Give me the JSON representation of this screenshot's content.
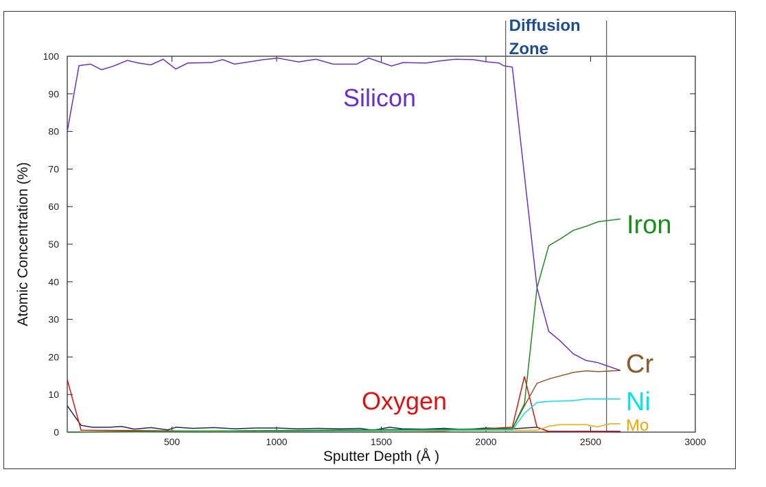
{
  "chart_data": {
    "type": "line",
    "xlabel": "Sputter Depth (Å )",
    "ylabel": "Atomic Concentration (%)",
    "xlim": [
      0,
      3000
    ],
    "ylim": [
      0,
      100
    ],
    "xticks": [
      500,
      1000,
      1500,
      2000,
      2500,
      3000
    ],
    "yticks": [
      0,
      10,
      20,
      30,
      40,
      50,
      60,
      70,
      80,
      90,
      100
    ],
    "grid": false,
    "annotation": {
      "text_line1": "Diffusion",
      "text_line2": "Zone",
      "x_start": 2094,
      "x_end": 2576,
      "color": "#1f4e8c"
    },
    "series": [
      {
        "name": "Silicon",
        "color": "#6a2fc8",
        "x": [
          0,
          56,
          111,
          164,
          222,
          287,
          340,
          399,
          458,
          518,
          576,
          688,
          743,
          799,
          938,
          1007,
          1104,
          1188,
          1271,
          1382,
          1440,
          1549,
          1604,
          1715,
          1771,
          1854,
          1938,
          2007,
          2063,
          2083,
          2126,
          2244,
          2300,
          2352,
          2418,
          2476,
          2533,
          2642
        ],
        "y": [
          80,
          97.5,
          97.9,
          96.4,
          97.4,
          98.9,
          98.2,
          97.7,
          99.2,
          96.6,
          98.2,
          98.3,
          99.1,
          97.9,
          99.1,
          99.5,
          98.5,
          99.2,
          97.9,
          97.9,
          99.5,
          97.4,
          98.3,
          98.2,
          98.7,
          99.2,
          99.1,
          98.5,
          98.2,
          97.5,
          97.1,
          38.4,
          26.8,
          24.4,
          20.8,
          19.1,
          18.5,
          16.4
        ]
      },
      {
        "name": "Iron",
        "color": "#1a8c1a",
        "x": [
          0,
          2126,
          2184,
          2244,
          2300,
          2358,
          2418,
          2476,
          2538,
          2642
        ],
        "y": [
          0,
          0.9,
          7.6,
          38.4,
          49.6,
          51.5,
          53.7,
          54.7,
          56,
          56.7
        ]
      },
      {
        "name": "Cr",
        "color": "#8b5a2b",
        "x": [
          0,
          2126,
          2184,
          2244,
          2304,
          2358,
          2418,
          2476,
          2538,
          2642
        ],
        "y": [
          0,
          0.9,
          7,
          13,
          14.2,
          15,
          15.9,
          16.3,
          16.1,
          16.4
        ]
      },
      {
        "name": "Ni",
        "color": "#00e5e5",
        "x": [
          0,
          2126,
          2184,
          2244,
          2304,
          2418,
          2476,
          2642
        ],
        "y": [
          0,
          0.6,
          5,
          7.9,
          8.2,
          8.4,
          8.8,
          8.8
        ]
      },
      {
        "name": "Mo",
        "color": "#f0a800",
        "x": [
          0,
          2244,
          2304,
          2358,
          2418,
          2476,
          2533,
          2590,
          2642
        ],
        "y": [
          0,
          0.5,
          1.6,
          2,
          2,
          2,
          1.4,
          2.2,
          2.2
        ]
      },
      {
        "name": "Oxygen",
        "color": "#e01010",
        "x": [
          0,
          66,
          300,
          800,
          1300,
          1800,
          2126,
          2184,
          2244,
          2300,
          2642
        ],
        "y": [
          14,
          0.5,
          0.4,
          0.2,
          0.5,
          0.3,
          1.3,
          14.8,
          1.3,
          0.1,
          0
        ]
      },
      {
        "color": "#1a2a5a",
        "x": [
          0,
          66,
          120,
          200,
          260,
          320,
          400,
          480,
          520,
          600,
          700,
          800,
          900,
          1000,
          1100,
          1200,
          1300,
          1400,
          1460,
          1540,
          1600,
          1700,
          1800,
          1900,
          2000,
          2126,
          2244,
          2300,
          2642
        ],
        "y": [
          7,
          1.8,
          1.3,
          1.3,
          1.5,
          0.8,
          1.2,
          0.6,
          1.3,
          1,
          1.2,
          0.9,
          1.1,
          1.1,
          0.9,
          1,
          0.9,
          1,
          0.5,
          1.3,
          0.9,
          0.8,
          1,
          0.7,
          1.1,
          0.9,
          1.3,
          0.2,
          0.2
        ]
      }
    ]
  }
}
